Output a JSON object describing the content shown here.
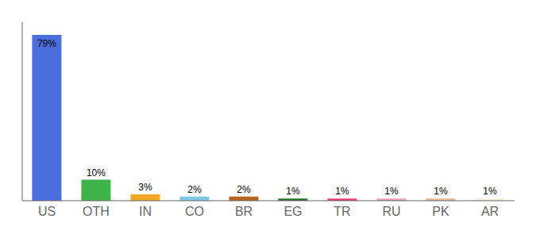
{
  "chart_data": {
    "type": "bar",
    "categories": [
      "US",
      "OTH",
      "IN",
      "CO",
      "BR",
      "EG",
      "TR",
      "RU",
      "PK",
      "AR"
    ],
    "values": [
      79,
      10,
      3,
      2,
      2,
      1,
      1,
      1,
      1,
      1
    ],
    "value_labels": [
      "79%",
      "10%",
      "3%",
      "2%",
      "2%",
      "1%",
      "1%",
      "1%",
      "1%",
      "1%"
    ],
    "colors": [
      "#4a6edb",
      "#3db34a",
      "#f5a623",
      "#7ec8e3",
      "#b5651d",
      "#2d6e2d",
      "#e8407a",
      "#f0a0b0",
      "#e8b89a",
      "#f5f0d8"
    ],
    "ylim": [
      0,
      85
    ],
    "data_labels": true,
    "tick_labels": "x",
    "grid": false
  }
}
